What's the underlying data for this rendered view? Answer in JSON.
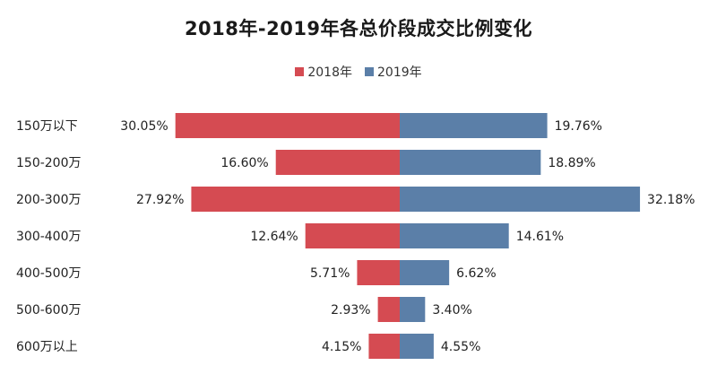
{
  "chart_data": {
    "type": "bar",
    "orientation": "horizontal-diverging",
    "title": "2018年-2019年各总价段成交比例变化",
    "categories": [
      "150万以下",
      "150-200万",
      "200-300万",
      "300-400万",
      "400-500万",
      "500-600万",
      "600万以上"
    ],
    "series": [
      {
        "name": "2018年",
        "color": "#d54b52",
        "values": [
          30.05,
          16.6,
          27.92,
          12.64,
          5.71,
          2.93,
          4.15
        ],
        "labels": [
          "30.05%",
          "16.60%",
          "27.92%",
          "12.64%",
          "5.71%",
          "2.93%",
          "4.15%"
        ]
      },
      {
        "name": "2019年",
        "color": "#5b7fa8",
        "values": [
          19.76,
          18.89,
          32.18,
          14.61,
          6.62,
          3.4,
          4.55
        ],
        "labels": [
          "19.76%",
          "18.89%",
          "32.18%",
          "14.61%",
          "6.62%",
          "3.40%",
          "4.55%"
        ]
      }
    ],
    "legend_position": "top",
    "grid": false
  }
}
